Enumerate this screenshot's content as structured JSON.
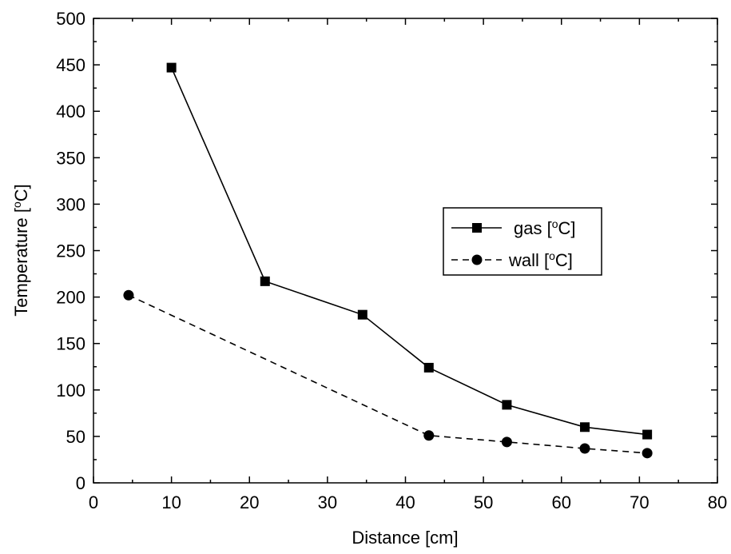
{
  "chart_data": {
    "type": "line",
    "xlabel": "Distance [cm]",
    "ylabel_main": "Temperature [",
    "ylabel_sup": "o",
    "ylabel_tail": "C]",
    "xlim": [
      0,
      80
    ],
    "ylim": [
      0,
      500
    ],
    "xticks": [
      0,
      10,
      20,
      30,
      40,
      50,
      60,
      70,
      80
    ],
    "yticks": [
      0,
      50,
      100,
      150,
      200,
      250,
      300,
      350,
      400,
      450,
      500
    ],
    "grid": false,
    "legend_position": "right-middle",
    "series": [
      {
        "name_main": "gas [",
        "name_sup": "o",
        "name_tail": "C]",
        "marker": "square",
        "line_style": "solid",
        "color": "#000000",
        "x": [
          10,
          22,
          34.5,
          43,
          53,
          63,
          71
        ],
        "y": [
          447,
          217,
          181,
          124,
          84,
          60,
          52
        ]
      },
      {
        "name_main": "wall [",
        "name_sup": "o",
        "name_tail": "C]",
        "marker": "circle",
        "line_style": "dashed",
        "color": "#000000",
        "x": [
          4.5,
          43,
          53,
          63,
          71
        ],
        "y": [
          202,
          51,
          44,
          37,
          32
        ]
      }
    ]
  }
}
